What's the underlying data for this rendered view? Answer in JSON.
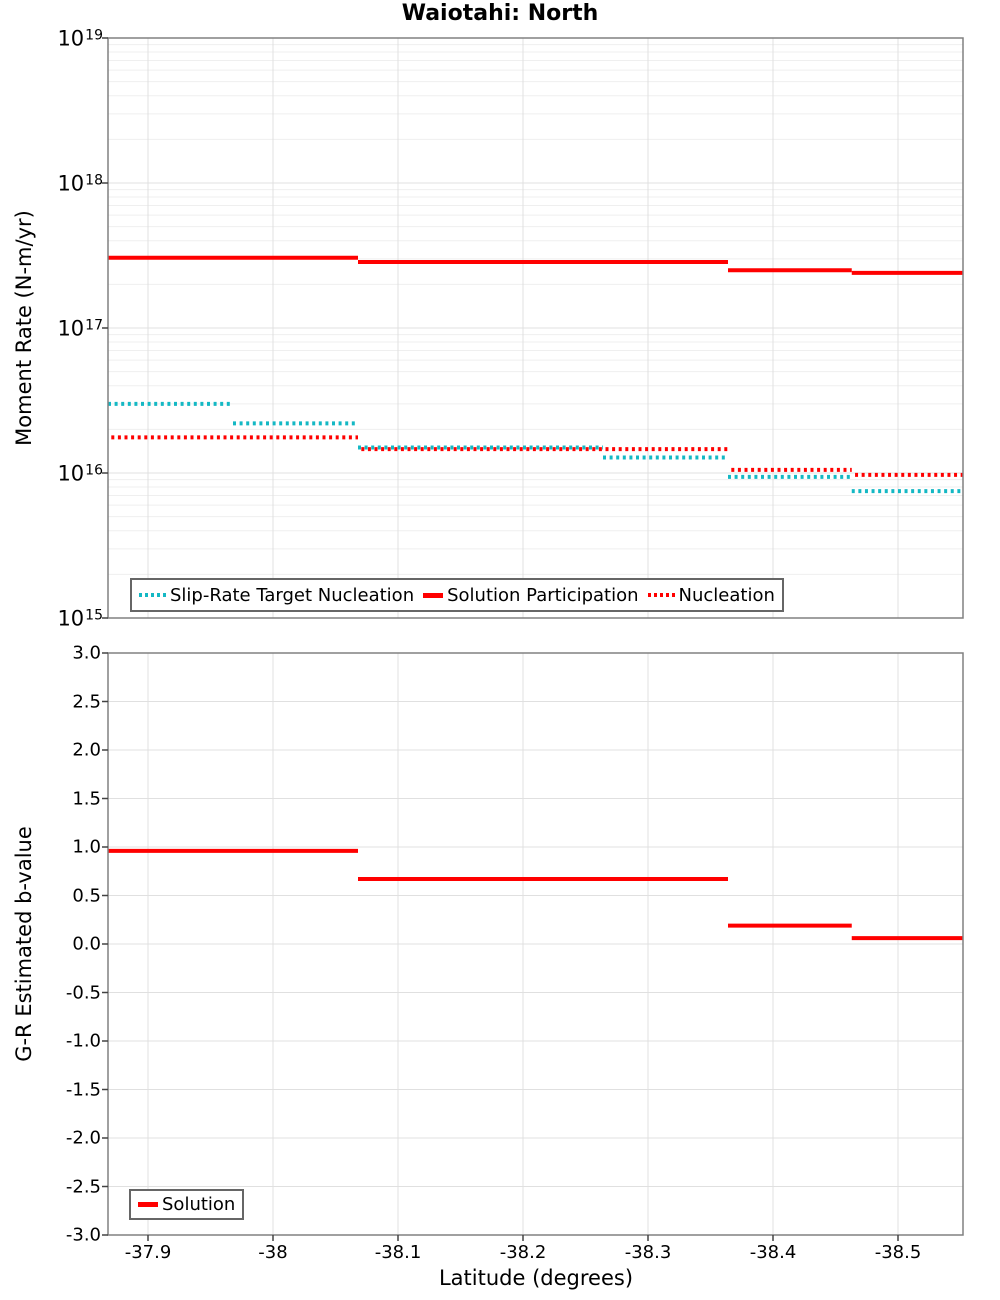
{
  "title": "Waiotahi: North",
  "colors": {
    "red": "#ff0000",
    "teal": "#14b8c4",
    "grid_major": "#e0e0e0",
    "grid_minor": "#efefef",
    "axis_border": "#808080",
    "tick_mark": "#424242",
    "legend_border": "#666666",
    "text": "#000000",
    "background": "#ffffff"
  },
  "x_axis": {
    "label": "Latitude (degrees)",
    "range": [
      -37.868,
      -38.552
    ],
    "ticks": [
      {
        "value": -37.9,
        "label": "-37.9"
      },
      {
        "value": -38.0,
        "label": "-38"
      },
      {
        "value": -38.1,
        "label": "-38.1"
      },
      {
        "value": -38.2,
        "label": "-38.2"
      },
      {
        "value": -38.3,
        "label": "-38.3"
      },
      {
        "value": -38.4,
        "label": "-38.4"
      },
      {
        "value": -38.5,
        "label": "-38.5"
      }
    ]
  },
  "chart_data": [
    {
      "type": "line",
      "subtype": "step-segments",
      "title": "Waiotahi: North",
      "ylabel": "Moment Rate (N-m/yr)",
      "yscale": "log",
      "ylim": [
        1000000000000000.0,
        1e+19
      ],
      "y_tick_exponents": [
        19,
        18,
        17,
        16,
        15
      ],
      "grid": true,
      "legend_position": "bottom-left",
      "series": [
        {
          "name": "Slip-Rate Target Nucleation",
          "color": "teal",
          "line_style": "dotted",
          "steps": [
            {
              "from_lat": -37.868,
              "to_lat": -37.968,
              "value": 3e+16
            },
            {
              "from_lat": -37.968,
              "to_lat": -38.068,
              "value": 2.2e+16
            },
            {
              "from_lat": -38.068,
              "to_lat": -38.264,
              "value": 1.5e+16
            },
            {
              "from_lat": -38.264,
              "to_lat": -38.364,
              "value": 1.28e+16
            },
            {
              "from_lat": -38.364,
              "to_lat": -38.463,
              "value": 9400000000000000.0
            },
            {
              "from_lat": -38.463,
              "to_lat": -38.552,
              "value": 7500000000000000.0
            }
          ]
        },
        {
          "name": "Solution Participation",
          "color": "red",
          "line_style": "solid",
          "steps": [
            {
              "from_lat": -37.868,
              "to_lat": -38.068,
              "value": 3.05e+17
            },
            {
              "from_lat": -38.068,
              "to_lat": -38.364,
              "value": 2.85e+17
            },
            {
              "from_lat": -38.364,
              "to_lat": -38.463,
              "value": 2.5e+17
            },
            {
              "from_lat": -38.463,
              "to_lat": -38.552,
              "value": 2.4e+17
            }
          ]
        },
        {
          "name": "Nucleation",
          "color": "red",
          "line_style": "dotted",
          "steps": [
            {
              "from_lat": -37.868,
              "to_lat": -38.068,
              "value": 1.76e+16
            },
            {
              "from_lat": -38.068,
              "to_lat": -38.364,
              "value": 1.46e+16
            },
            {
              "from_lat": -38.364,
              "to_lat": -38.463,
              "value": 1.05e+16
            },
            {
              "from_lat": -38.463,
              "to_lat": -38.552,
              "value": 9700000000000000.0
            }
          ]
        }
      ]
    },
    {
      "type": "line",
      "subtype": "step-segments",
      "ylabel": "G-R Estimated b-value",
      "yscale": "linear",
      "ylim": [
        -3.0,
        3.0
      ],
      "y_ticks": [
        {
          "value": 3.0,
          "label": "3.0"
        },
        {
          "value": 2.5,
          "label": "2.5"
        },
        {
          "value": 2.0,
          "label": "2.0"
        },
        {
          "value": 1.5,
          "label": "1.5"
        },
        {
          "value": 1.0,
          "label": "1.0"
        },
        {
          "value": 0.5,
          "label": "0.5"
        },
        {
          "value": 0.0,
          "label": "0.0"
        },
        {
          "value": -0.5,
          "label": "-0.5"
        },
        {
          "value": -1.0,
          "label": "-1.0"
        },
        {
          "value": -1.5,
          "label": "-1.5"
        },
        {
          "value": -2.0,
          "label": "-2.0"
        },
        {
          "value": -2.5,
          "label": "-2.5"
        },
        {
          "value": -3.0,
          "label": "-3.0"
        }
      ],
      "grid": true,
      "legend_position": "bottom-left",
      "series": [
        {
          "name": "Solution",
          "color": "red",
          "line_style": "solid",
          "steps": [
            {
              "from_lat": -37.868,
              "to_lat": -38.068,
              "value": 0.96
            },
            {
              "from_lat": -38.068,
              "to_lat": -38.364,
              "value": 0.67
            },
            {
              "from_lat": -38.364,
              "to_lat": -38.463,
              "value": 0.19
            },
            {
              "from_lat": -38.463,
              "to_lat": -38.552,
              "value": 0.06
            }
          ]
        }
      ]
    }
  ]
}
